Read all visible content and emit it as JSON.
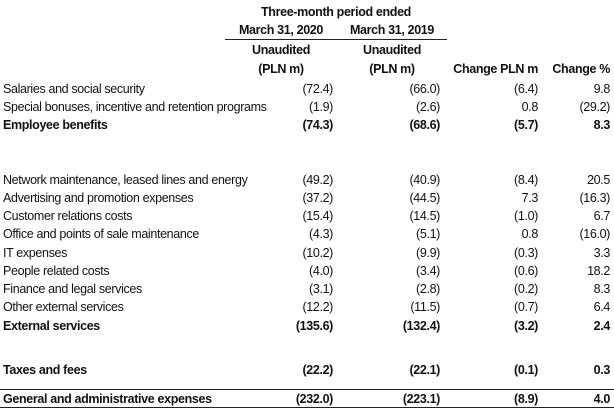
{
  "header": {
    "period": "Three-month period ended",
    "col1_date": "March 31, 2020",
    "col2_date": "March 31, 2019",
    "col1_status": "Unaudited",
    "col2_status": "Unaudited",
    "col1_unit": "(PLN m)",
    "col2_unit": "(PLN m)",
    "change_pln": "Change PLN m",
    "change_pct": "Change %"
  },
  "rows": [
    {
      "label": "Salaries and social security",
      "v2020": "(72.4)",
      "v2019": "(66.0)",
      "change": "(6.4)",
      "pct": "9.8",
      "bold": false
    },
    {
      "label": "Special bonuses, incentive and retention programs",
      "v2020": "(1.9)",
      "v2019": "(2.6)",
      "change": "0.8",
      "pct": "(29.2)",
      "bold": false
    },
    {
      "label": "Employee benefits",
      "v2020": "(74.3)",
      "v2019": "(68.6)",
      "change": "(5.7)",
      "pct": "8.3",
      "bold": true
    },
    {
      "label": "Network maintenance, leased lines and energy",
      "v2020": "(49.2)",
      "v2019": "(40.9)",
      "change": "(8.4)",
      "pct": "20.5",
      "bold": false
    },
    {
      "label": "Advertising and promotion expenses",
      "v2020": "(37.2)",
      "v2019": "(44.5)",
      "change": "7.3",
      "pct": "(16.3)",
      "bold": false
    },
    {
      "label": "Customer relations costs",
      "v2020": "(15.4)",
      "v2019": "(14.5)",
      "change": "(1.0)",
      "pct": "6.7",
      "bold": false
    },
    {
      "label": "Office and points of sale maintenance",
      "v2020": "(4.3)",
      "v2019": "(5.1)",
      "change": "0.8",
      "pct": "(16.0)",
      "bold": false
    },
    {
      "label": "IT expenses",
      "v2020": "(10.2)",
      "v2019": "(9.9)",
      "change": "(0.3)",
      "pct": "3.3",
      "bold": false
    },
    {
      "label": "People related costs",
      "v2020": "(4.0)",
      "v2019": "(3.4)",
      "change": "(0.6)",
      "pct": "18.2",
      "bold": false
    },
    {
      "label": "Finance and legal services",
      "v2020": "(3.1)",
      "v2019": "(2.8)",
      "change": "(0.2)",
      "pct": "8.3",
      "bold": false
    },
    {
      "label": "Other external services",
      "v2020": "(12.2)",
      "v2019": "(11.5)",
      "change": "(0.7)",
      "pct": "6.4",
      "bold": false
    },
    {
      "label": "External services",
      "v2020": "(135.6)",
      "v2019": "(132.4)",
      "change": "(3.2)",
      "pct": "2.4",
      "bold": true
    },
    {
      "label": "Taxes and fees",
      "v2020": "(22.2)",
      "v2019": "(22.1)",
      "change": "(0.1)",
      "pct": "0.3",
      "bold": true
    },
    {
      "label": "General and administrative expenses",
      "v2020": "(232.0)",
      "v2019": "(223.1)",
      "change": "(8.9)",
      "pct": "4.0",
      "bold": true
    }
  ]
}
